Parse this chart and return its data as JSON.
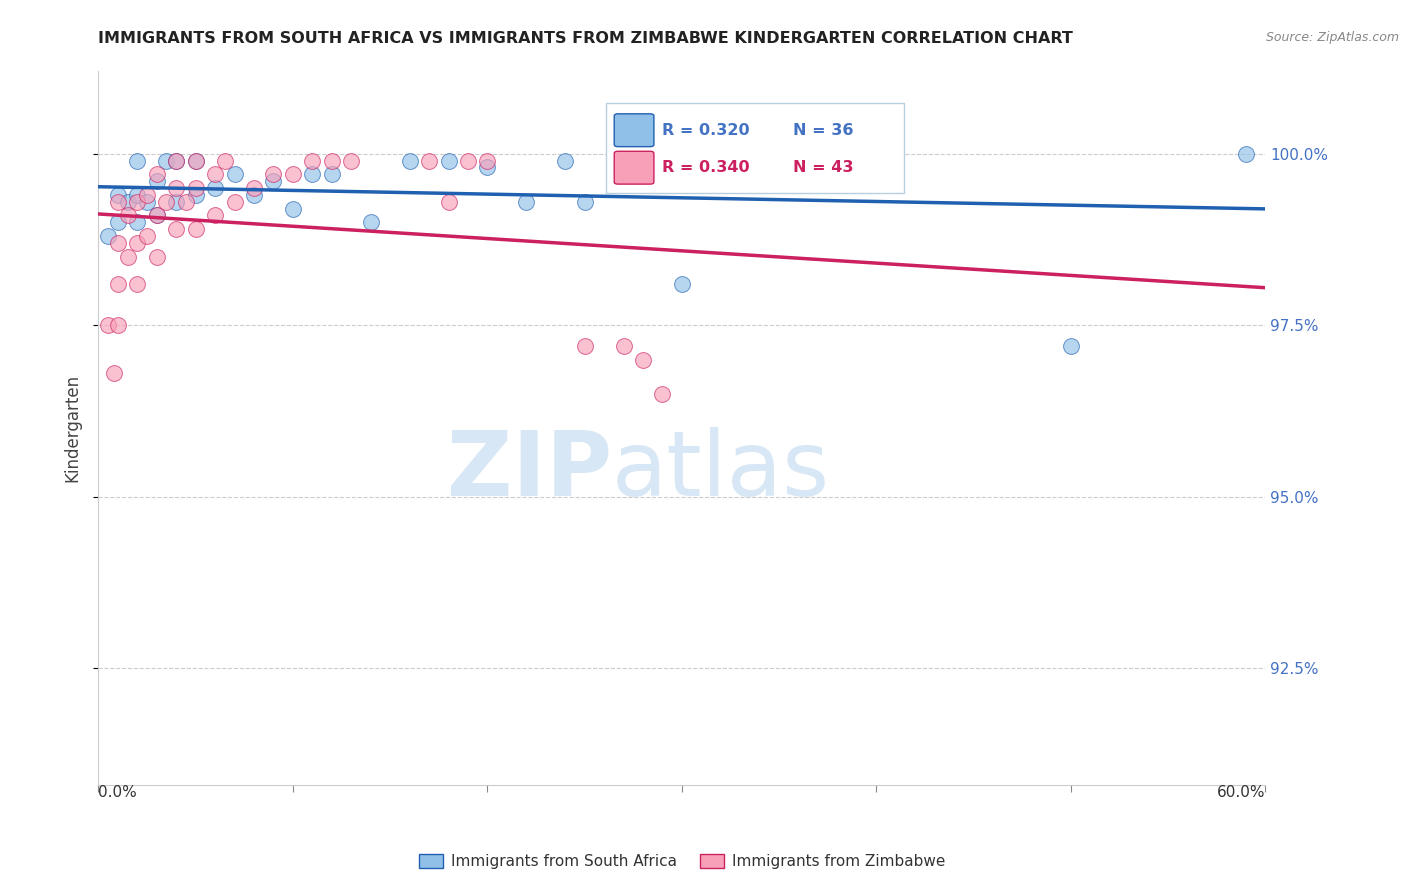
{
  "title": "IMMIGRANTS FROM SOUTH AFRICA VS IMMIGRANTS FROM ZIMBABWE KINDERGARTEN CORRELATION CHART",
  "source": "Source: ZipAtlas.com",
  "ylabel": "Kindergarten",
  "ytick_labels": [
    "100.0%",
    "97.5%",
    "95.0%",
    "92.5%"
  ],
  "ytick_values": [
    1.0,
    0.975,
    0.95,
    0.925
  ],
  "xlim": [
    0.0,
    0.6
  ],
  "ylim": [
    0.908,
    1.012
  ],
  "xticks": [
    0.0,
    0.1,
    0.2,
    0.3,
    0.4,
    0.5,
    0.6
  ],
  "legend_R_blue": "R = 0.320",
  "legend_N_blue": "N = 36",
  "legend_R_pink": "R = 0.340",
  "legend_N_pink": "N = 43",
  "legend_label_blue": "Immigrants from South Africa",
  "legend_label_pink": "Immigrants from Zimbabwe",
  "color_blue": "#90c0e8",
  "color_pink": "#f8a0b8",
  "trendline_blue": "#2060b0",
  "trendline_pink": "#cc2060",
  "south_africa_x": [
    0.005,
    0.01,
    0.01,
    0.015,
    0.02,
    0.02,
    0.02,
    0.025,
    0.03,
    0.03,
    0.035,
    0.04,
    0.04,
    0.05,
    0.05,
    0.06,
    0.07,
    0.08,
    0.09,
    0.1,
    0.11,
    0.12,
    0.14,
    0.16,
    0.18,
    0.2,
    0.22,
    0.24,
    0.25,
    0.27,
    0.28,
    0.3,
    0.3,
    0.3,
    0.5,
    0.59
  ],
  "south_africa_y": [
    0.988,
    0.99,
    0.994,
    0.993,
    0.99,
    0.994,
    0.999,
    0.993,
    0.991,
    0.996,
    0.999,
    0.993,
    0.999,
    0.994,
    0.999,
    0.995,
    0.997,
    0.994,
    0.996,
    0.992,
    0.997,
    0.997,
    0.99,
    0.999,
    0.999,
    0.998,
    0.993,
    0.999,
    0.993,
    0.999,
    0.999,
    0.981,
    0.999,
    0.999,
    0.972,
    1.0
  ],
  "zimbabwe_x": [
    0.005,
    0.008,
    0.01,
    0.01,
    0.01,
    0.01,
    0.015,
    0.015,
    0.02,
    0.02,
    0.02,
    0.025,
    0.025,
    0.03,
    0.03,
    0.03,
    0.035,
    0.04,
    0.04,
    0.04,
    0.045,
    0.05,
    0.05,
    0.05,
    0.06,
    0.06,
    0.065,
    0.07,
    0.08,
    0.09,
    0.1,
    0.11,
    0.12,
    0.13,
    0.17,
    0.18,
    0.19,
    0.2,
    0.25,
    0.27,
    0.28,
    0.29,
    0.3
  ],
  "zimbabwe_y": [
    0.975,
    0.968,
    0.975,
    0.981,
    0.987,
    0.993,
    0.985,
    0.991,
    0.981,
    0.987,
    0.993,
    0.988,
    0.994,
    0.985,
    0.991,
    0.997,
    0.993,
    0.989,
    0.995,
    0.999,
    0.993,
    0.989,
    0.995,
    0.999,
    0.991,
    0.997,
    0.999,
    0.993,
    0.995,
    0.997,
    0.997,
    0.999,
    0.999,
    0.999,
    0.999,
    0.993,
    0.999,
    0.999,
    0.972,
    0.972,
    0.97,
    0.965,
    0.999
  ]
}
